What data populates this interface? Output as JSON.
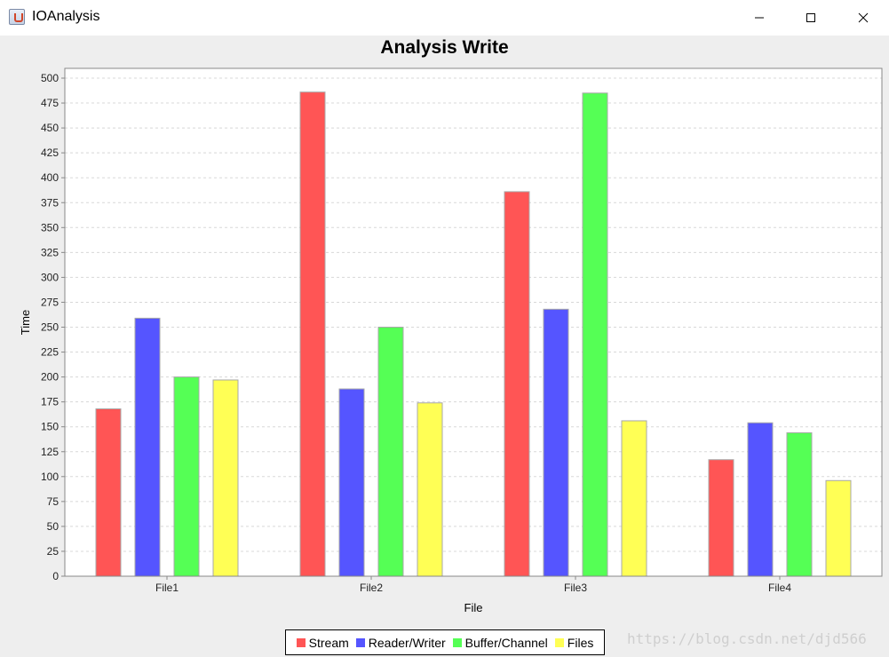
{
  "window": {
    "title": "IOAnalysis",
    "icon": "java-cup-icon",
    "controls": {
      "minimize": "minimize-icon",
      "maximize": "maximize-icon",
      "close": "close-icon"
    }
  },
  "watermark": "https://blog.csdn.net/djd566",
  "chart_data": {
    "type": "bar",
    "title": "Analysis Write",
    "xlabel": "File",
    "ylabel": "Time",
    "categories": [
      "File1",
      "File2",
      "File3",
      "File4"
    ],
    "series": [
      {
        "name": "Stream",
        "color": "#ff5555",
        "values": [
          168,
          486,
          386,
          117
        ]
      },
      {
        "name": "Reader/Writer",
        "color": "#5555ff",
        "values": [
          259,
          188,
          268,
          154
        ]
      },
      {
        "name": "Buffer/Channel",
        "color": "#55ff55",
        "values": [
          200,
          250,
          485,
          144
        ]
      },
      {
        "name": "Files",
        "color": "#ffff55",
        "values": [
          197,
          174,
          156,
          96
        ]
      }
    ],
    "ylim": [
      0,
      500
    ],
    "ytick_step": 25,
    "grid": true,
    "legend": "bottom"
  }
}
